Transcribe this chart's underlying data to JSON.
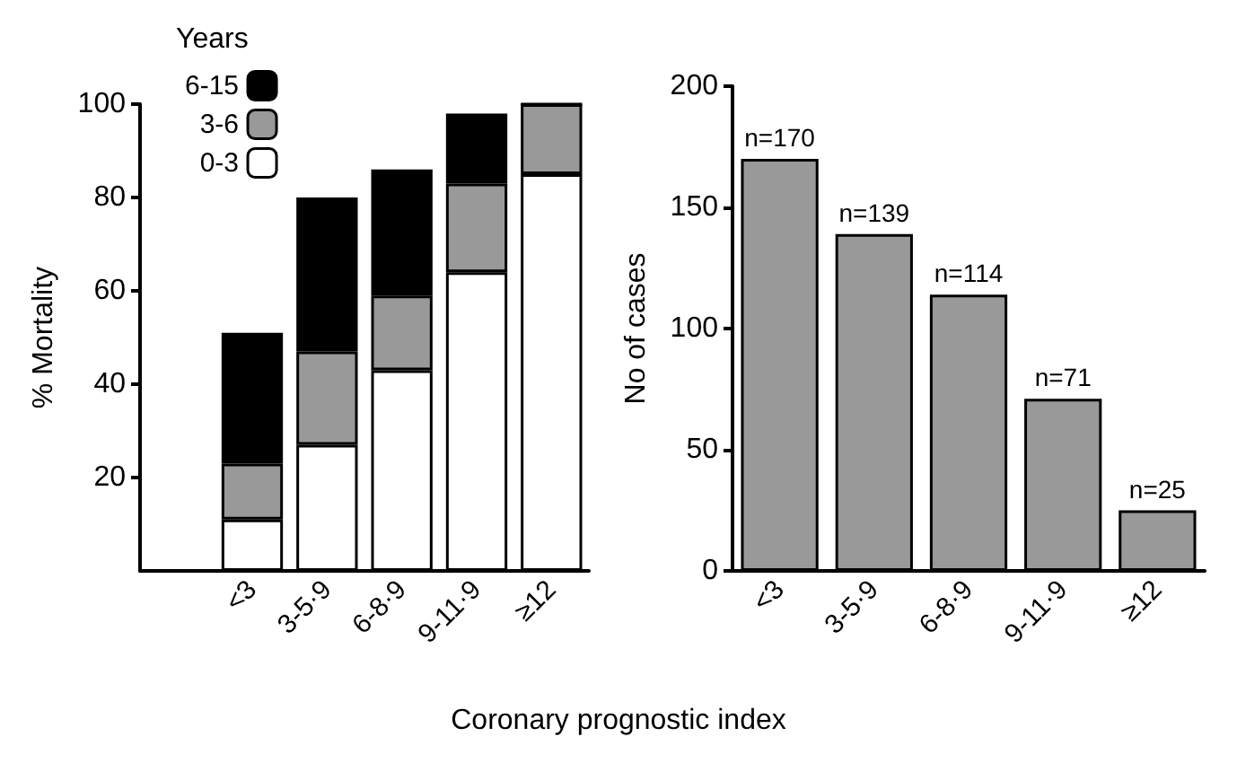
{
  "chart_data": [
    {
      "type": "bar",
      "stacked": true,
      "ylabel": "% Mortality",
      "xlabel": "Coronary prognostic index",
      "legend_title": "Years",
      "legend": "top left",
      "grid": false,
      "categories": [
        null,
        "<3",
        "3-5·9",
        "6-8·9",
        "9-11·9",
        "≥12"
      ],
      "series": [
        {
          "name": "0-3",
          "color": "#ffffff",
          "values": [
            null,
            11,
            27,
            43,
            64,
            85
          ]
        },
        {
          "name": "3-6",
          "color": "#999999",
          "values": [
            null,
            12,
            20,
            16,
            19,
            15
          ]
        },
        {
          "name": "6-15",
          "color": "#000000",
          "values": [
            null,
            28,
            33,
            27,
            15,
            0
          ]
        }
      ],
      "ylim": [
        0,
        100
      ],
      "yticks": [
        20,
        40,
        60,
        80,
        100
      ]
    },
    {
      "type": "bar",
      "ylabel": "No of cases",
      "grid": false,
      "categories": [
        "<3",
        "3-5·9",
        "6-8·9",
        "9-11·9",
        "≥12"
      ],
      "series": [
        {
          "color": "#999999",
          "values": [
            170,
            139,
            114,
            71,
            25
          ],
          "value_labels": [
            "n=170",
            "n=139",
            "n=114",
            "n=71",
            "n=25"
          ]
        }
      ],
      "ylim": [
        0,
        200
      ],
      "yticks": [
        0,
        50,
        100,
        150,
        200
      ]
    }
  ]
}
